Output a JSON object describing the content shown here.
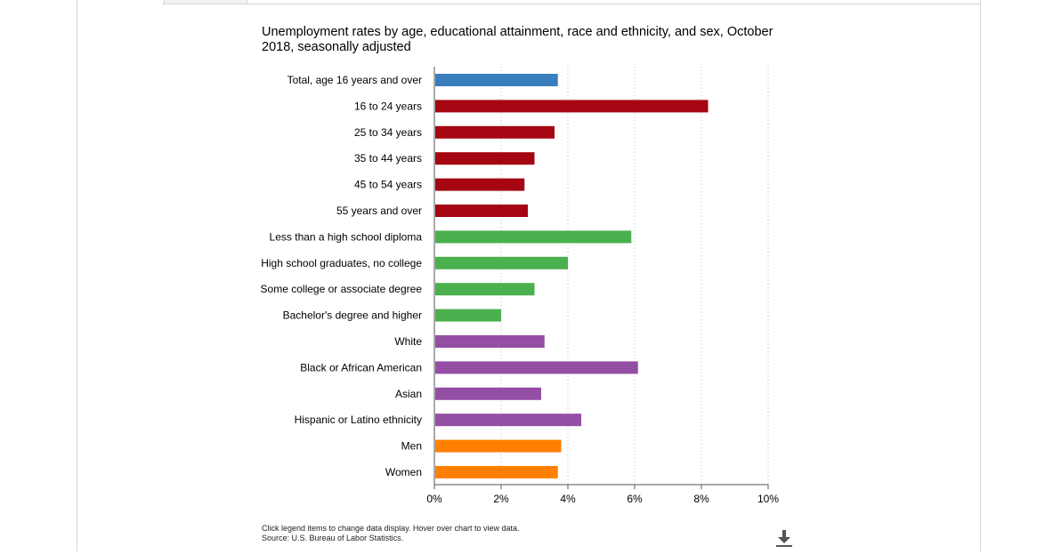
{
  "chart_data": {
    "type": "bar",
    "orientation": "horizontal",
    "title": "Unemployment rates by age, educational attainment, race and ethnicity, and sex, October 2018, seasonally adjusted",
    "xlabel": "",
    "ylabel": "",
    "xlim": [
      0,
      10
    ],
    "x_ticks": [
      0,
      2,
      4,
      6,
      8,
      10
    ],
    "x_tick_labels": [
      "0%",
      "2%",
      "4%",
      "6%",
      "8%",
      "10%"
    ],
    "grid": "vertical dotted",
    "categories": [
      "Total, age 16 years and over",
      "16 to 24 years",
      "25 to 34 years",
      "35 to 44 years",
      "45 to 54 years",
      "55 years and over",
      "Less than a high school diploma",
      "High school graduates, no college",
      "Some college or associate degree",
      "Bachelor's degree and higher",
      "White",
      "Black or African American",
      "Asian",
      "Hispanic or Latino ethnicity",
      "Men",
      "Women"
    ],
    "values": [
      3.7,
      8.2,
      3.6,
      3.0,
      2.7,
      2.8,
      5.9,
      4.0,
      3.0,
      2.0,
      3.3,
      6.1,
      3.2,
      4.4,
      3.8,
      3.7
    ],
    "bar_colors": [
      "#3a7fbd",
      "#a50612",
      "#a50612",
      "#a50612",
      "#a50612",
      "#a50612",
      "#4bb04e",
      "#4bb04e",
      "#4bb04e",
      "#4bb04e",
      "#944ea3",
      "#944ea3",
      "#944ea3",
      "#944ea3",
      "#ff8000",
      "#ff8000"
    ]
  },
  "footer": {
    "note": "Click legend items to change data display. Hover over chart to view data.",
    "source": "Source: U.S. Bureau of Labor Statistics."
  },
  "icons": {
    "download": "download-icon"
  }
}
